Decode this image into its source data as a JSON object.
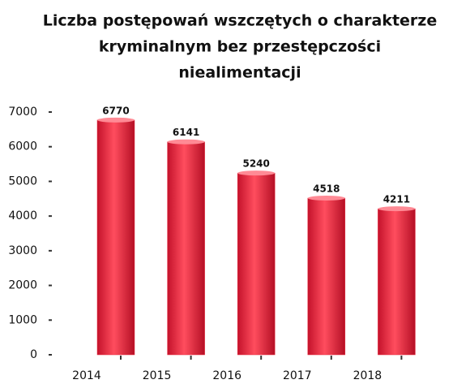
{
  "chart_data": {
    "type": "bar",
    "title": [
      "Liczba postępowań wszczętych o charakterze",
      "kryminalnym bez przestępczości",
      "niealimentacji"
    ],
    "categories": [
      "2014",
      "2015",
      "2016",
      "2017",
      "2018"
    ],
    "values": [
      6770,
      6141,
      5240,
      4518,
      4211
    ],
    "color": "#e8283c",
    "ylim": [
      0,
      7000
    ],
    "yticks": [
      0,
      1000,
      2000,
      3000,
      4000,
      5000,
      6000,
      7000
    ],
    "grid": false
  }
}
